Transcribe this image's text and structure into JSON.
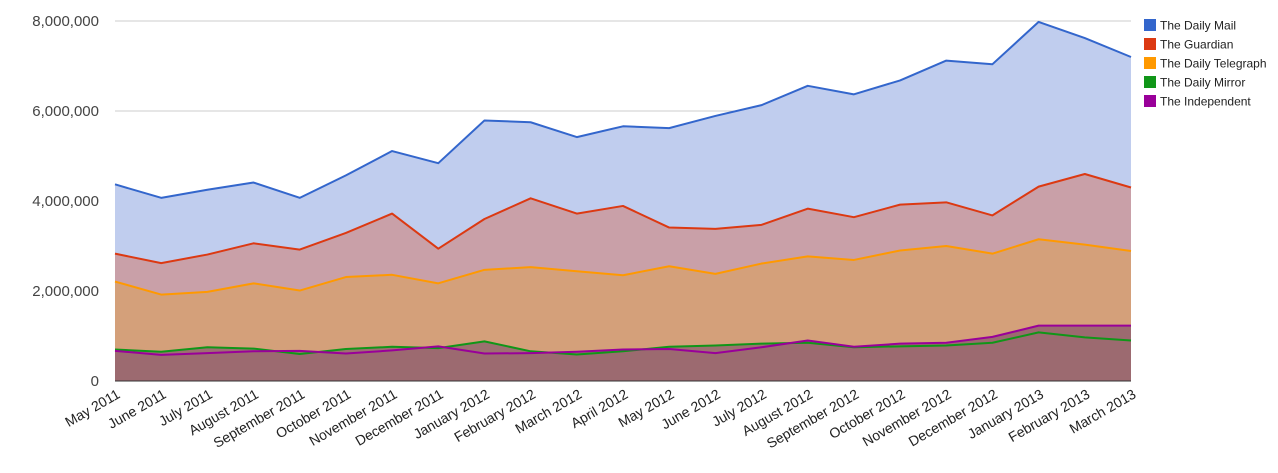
{
  "chart_data": {
    "type": "area",
    "title": "",
    "xlabel": "",
    "ylabel": "",
    "ylim": [
      0,
      8000000
    ],
    "yticks": [
      0,
      2000000,
      4000000,
      6000000,
      8000000
    ],
    "ytick_labels": [
      "0",
      "2,000,000",
      "4,000,000",
      "6,000,000",
      "8,000,000"
    ],
    "grid": true,
    "legend_position": "right",
    "categories": [
      "May 2011",
      "June 2011",
      "July 2011",
      "August 2011",
      "September 2011",
      "October 2011",
      "November 2011",
      "December 2011",
      "January 2012",
      "February 2012",
      "March 2012",
      "April 2012",
      "May 2012",
      "June 2012",
      "July 2012",
      "August 2012",
      "September 2012",
      "October 2012",
      "November 2012",
      "December 2012",
      "January 2013",
      "February 2013",
      "March 2013"
    ],
    "series": [
      {
        "name": "The Daily Mail",
        "color": "#3366cc",
        "fill": "#c0cdee",
        "values": [
          4370000,
          4070000,
          4250000,
          4410000,
          4070000,
          4570000,
          5110000,
          4840000,
          5790000,
          5750000,
          5420000,
          5660000,
          5620000,
          5890000,
          6130000,
          6560000,
          6370000,
          6680000,
          7120000,
          7040000,
          7980000,
          7620000,
          7200000
        ]
      },
      {
        "name": "The Guardian",
        "color": "#dc3912",
        "fill": "#c9a0a8",
        "values": [
          2830000,
          2620000,
          2810000,
          3060000,
          2920000,
          3290000,
          3720000,
          2940000,
          3600000,
          4060000,
          3720000,
          3890000,
          3410000,
          3380000,
          3470000,
          3830000,
          3640000,
          3920000,
          3970000,
          3680000,
          4320000,
          4600000,
          4300000
        ]
      },
      {
        "name": "The Daily Telegraph",
        "color": "#ff9900",
        "fill": "#d4a07a",
        "values": [
          2210000,
          1920000,
          1980000,
          2170000,
          2010000,
          2310000,
          2360000,
          2170000,
          2470000,
          2530000,
          2440000,
          2350000,
          2550000,
          2380000,
          2610000,
          2770000,
          2690000,
          2900000,
          3000000,
          2830000,
          3150000,
          3030000,
          2890000
        ]
      },
      {
        "name": "The Daily Mirror",
        "color": "#109618",
        "fill": "#9c7070",
        "values": [
          700000,
          650000,
          750000,
          720000,
          600000,
          710000,
          760000,
          730000,
          880000,
          660000,
          590000,
          660000,
          760000,
          790000,
          830000,
          850000,
          750000,
          770000,
          790000,
          850000,
          1080000,
          970000,
          900000
        ]
      },
      {
        "name": "The Independent",
        "color": "#990099",
        "fill": "#9c6a70",
        "values": [
          670000,
          580000,
          620000,
          660000,
          670000,
          610000,
          680000,
          770000,
          610000,
          620000,
          650000,
          700000,
          710000,
          620000,
          750000,
          900000,
          760000,
          830000,
          850000,
          980000,
          1230000,
          1230000,
          1230000
        ]
      }
    ]
  }
}
